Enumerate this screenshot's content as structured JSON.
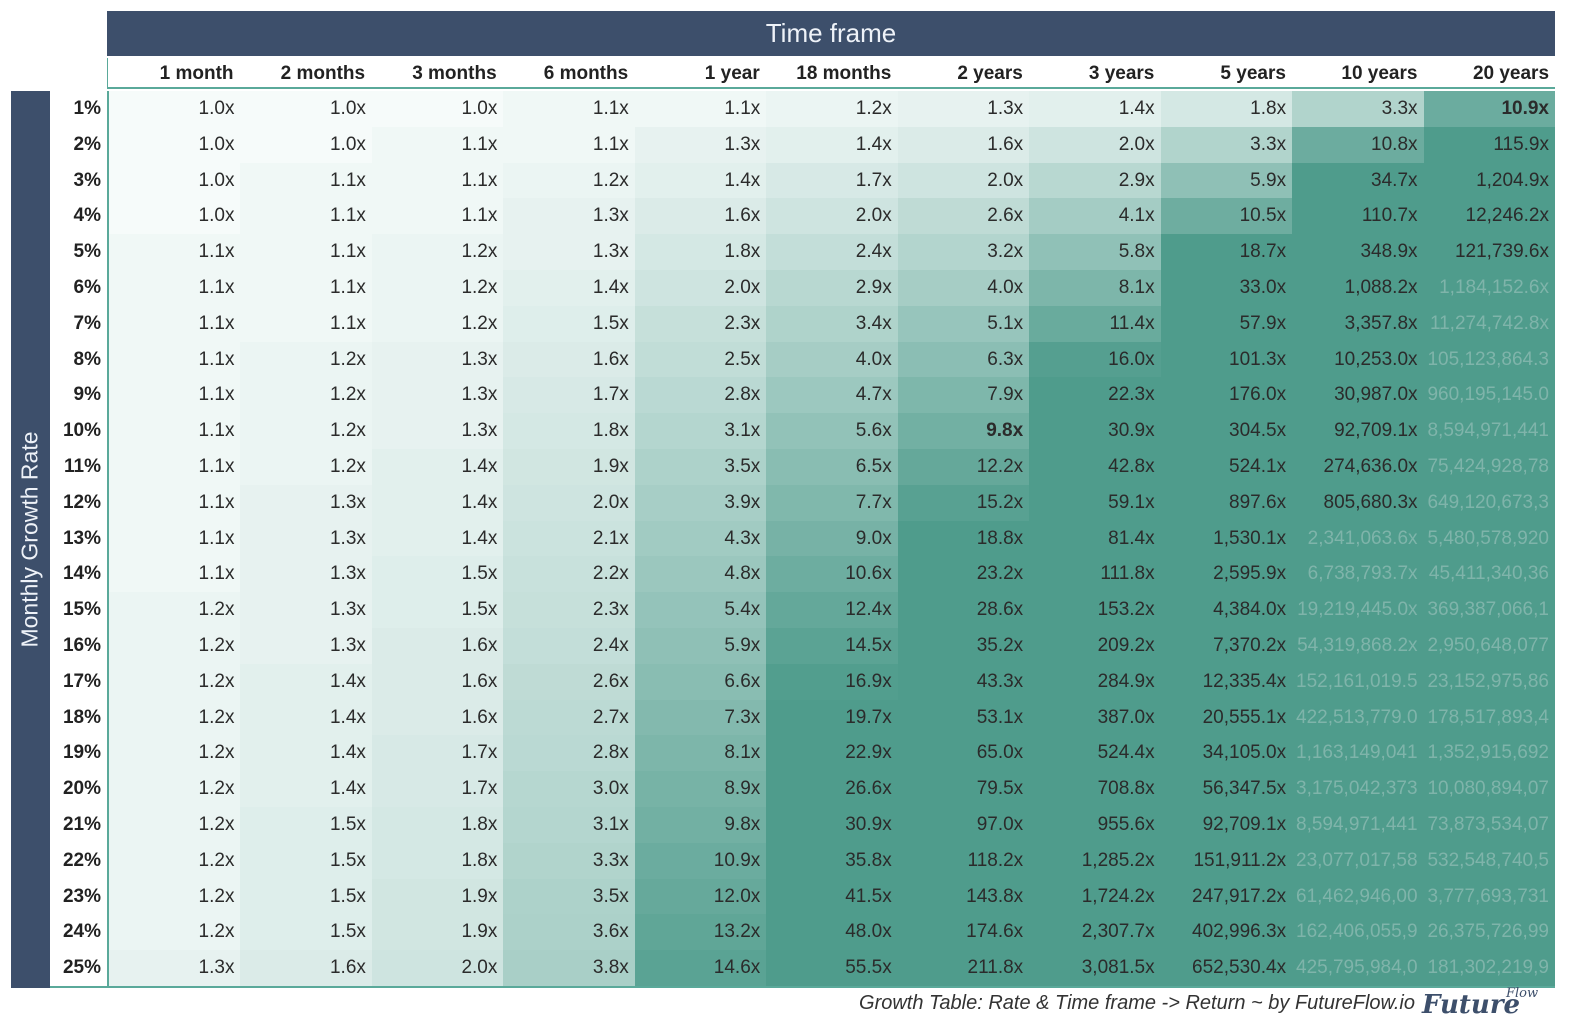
{
  "header": {
    "title": "Time frame"
  },
  "axis": {
    "row_label": "Monthly Growth Rate"
  },
  "columns": [
    "1 month",
    "2 months",
    "3 months",
    "6 months",
    "1 year",
    "18 months",
    "2 years",
    "3 years",
    "5 years",
    "10 years",
    "20 years"
  ],
  "rows": [
    {
      "rate": "1%",
      "values": [
        "1.0x",
        "1.0x",
        "1.0x",
        "1.1x",
        "1.1x",
        "1.2x",
        "1.3x",
        "1.4x",
        "1.8x",
        "3.3x",
        "10.9x"
      ]
    },
    {
      "rate": "2%",
      "values": [
        "1.0x",
        "1.0x",
        "1.1x",
        "1.1x",
        "1.3x",
        "1.4x",
        "1.6x",
        "2.0x",
        "3.3x",
        "10.8x",
        "115.9x"
      ]
    },
    {
      "rate": "3%",
      "values": [
        "1.0x",
        "1.1x",
        "1.1x",
        "1.2x",
        "1.4x",
        "1.7x",
        "2.0x",
        "2.9x",
        "5.9x",
        "34.7x",
        "1,204.9x"
      ]
    },
    {
      "rate": "4%",
      "values": [
        "1.0x",
        "1.1x",
        "1.1x",
        "1.3x",
        "1.6x",
        "2.0x",
        "2.6x",
        "4.1x",
        "10.5x",
        "110.7x",
        "12,246.2x"
      ]
    },
    {
      "rate": "5%",
      "values": [
        "1.1x",
        "1.1x",
        "1.2x",
        "1.3x",
        "1.8x",
        "2.4x",
        "3.2x",
        "5.8x",
        "18.7x",
        "348.9x",
        "121,739.6x"
      ]
    },
    {
      "rate": "6%",
      "values": [
        "1.1x",
        "1.1x",
        "1.2x",
        "1.4x",
        "2.0x",
        "2.9x",
        "4.0x",
        "8.1x",
        "33.0x",
        "1,088.2x",
        "1,184,152.6x"
      ]
    },
    {
      "rate": "7%",
      "values": [
        "1.1x",
        "1.1x",
        "1.2x",
        "1.5x",
        "2.3x",
        "3.4x",
        "5.1x",
        "11.4x",
        "57.9x",
        "3,357.8x",
        "11,274,742.8x"
      ]
    },
    {
      "rate": "8%",
      "values": [
        "1.1x",
        "1.2x",
        "1.3x",
        "1.6x",
        "2.5x",
        "4.0x",
        "6.3x",
        "16.0x",
        "101.3x",
        "10,253.0x",
        "105,123,864.3"
      ]
    },
    {
      "rate": "9%",
      "values": [
        "1.1x",
        "1.2x",
        "1.3x",
        "1.7x",
        "2.8x",
        "4.7x",
        "7.9x",
        "22.3x",
        "176.0x",
        "30,987.0x",
        "960,195,145.0"
      ]
    },
    {
      "rate": "10%",
      "values": [
        "1.1x",
        "1.2x",
        "1.3x",
        "1.8x",
        "3.1x",
        "5.6x",
        "9.8x",
        "30.9x",
        "304.5x",
        "92,709.1x",
        "8,594,971,441"
      ]
    },
    {
      "rate": "11%",
      "values": [
        "1.1x",
        "1.2x",
        "1.4x",
        "1.9x",
        "3.5x",
        "6.5x",
        "12.2x",
        "42.8x",
        "524.1x",
        "274,636.0x",
        "75,424,928,78"
      ]
    },
    {
      "rate": "12%",
      "values": [
        "1.1x",
        "1.3x",
        "1.4x",
        "2.0x",
        "3.9x",
        "7.7x",
        "15.2x",
        "59.1x",
        "897.6x",
        "805,680.3x",
        "649,120,673,3"
      ]
    },
    {
      "rate": "13%",
      "values": [
        "1.1x",
        "1.3x",
        "1.4x",
        "2.1x",
        "4.3x",
        "9.0x",
        "18.8x",
        "81.4x",
        "1,530.1x",
        "2,341,063.6x",
        "5,480,578,920"
      ]
    },
    {
      "rate": "14%",
      "values": [
        "1.1x",
        "1.3x",
        "1.5x",
        "2.2x",
        "4.8x",
        "10.6x",
        "23.2x",
        "111.8x",
        "2,595.9x",
        "6,738,793.7x",
        "45,411,340,36"
      ]
    },
    {
      "rate": "15%",
      "values": [
        "1.2x",
        "1.3x",
        "1.5x",
        "2.3x",
        "5.4x",
        "12.4x",
        "28.6x",
        "153.2x",
        "4,384.0x",
        "19,219,445.0x",
        "369,387,066,1"
      ]
    },
    {
      "rate": "16%",
      "values": [
        "1.2x",
        "1.3x",
        "1.6x",
        "2.4x",
        "5.9x",
        "14.5x",
        "35.2x",
        "209.2x",
        "7,370.2x",
        "54,319,868.2x",
        "2,950,648,077"
      ]
    },
    {
      "rate": "17%",
      "values": [
        "1.2x",
        "1.4x",
        "1.6x",
        "2.6x",
        "6.6x",
        "16.9x",
        "43.3x",
        "284.9x",
        "12,335.4x",
        "152,161,019.5",
        "23,152,975,86"
      ]
    },
    {
      "rate": "18%",
      "values": [
        "1.2x",
        "1.4x",
        "1.6x",
        "2.7x",
        "7.3x",
        "19.7x",
        "53.1x",
        "387.0x",
        "20,555.1x",
        "422,513,779.0",
        "178,517,893,4"
      ]
    },
    {
      "rate": "19%",
      "values": [
        "1.2x",
        "1.4x",
        "1.7x",
        "2.8x",
        "8.1x",
        "22.9x",
        "65.0x",
        "524.4x",
        "34,105.0x",
        "1,163,149,041",
        "1,352,915,692"
      ]
    },
    {
      "rate": "20%",
      "values": [
        "1.2x",
        "1.4x",
        "1.7x",
        "3.0x",
        "8.9x",
        "26.6x",
        "79.5x",
        "708.8x",
        "56,347.5x",
        "3,175,042,373",
        "10,080,894,07"
      ]
    },
    {
      "rate": "21%",
      "values": [
        "1.2x",
        "1.5x",
        "1.8x",
        "3.1x",
        "9.8x",
        "30.9x",
        "97.0x",
        "955.6x",
        "92,709.1x",
        "8,594,971,441",
        "73,873,534,07"
      ]
    },
    {
      "rate": "22%",
      "values": [
        "1.2x",
        "1.5x",
        "1.8x",
        "3.3x",
        "10.9x",
        "35.8x",
        "118.2x",
        "1,285.2x",
        "151,911.2x",
        "23,077,017,58",
        "532,548,740,5"
      ]
    },
    {
      "rate": "23%",
      "values": [
        "1.2x",
        "1.5x",
        "1.9x",
        "3.5x",
        "12.0x",
        "41.5x",
        "143.8x",
        "1,724.2x",
        "247,917.2x",
        "61,462,946,00",
        "3,777,693,731"
      ]
    },
    {
      "rate": "24%",
      "values": [
        "1.2x",
        "1.5x",
        "1.9x",
        "3.6x",
        "13.2x",
        "48.0x",
        "174.6x",
        "2,307.7x",
        "402,996.3x",
        "162,406,055,9",
        "26,375,726,99"
      ]
    },
    {
      "rate": "25%",
      "values": [
        "1.3x",
        "1.6x",
        "2.0x",
        "3.8x",
        "14.6x",
        "55.5x",
        "211.8x",
        "3,081.5x",
        "652,530.4x",
        "425,795,984,0",
        "181,302,219,9"
      ]
    }
  ],
  "highlights": [
    {
      "row": 0,
      "col": 10
    },
    {
      "row": 9,
      "col": 6
    }
  ],
  "footer": {
    "caption": "Growth Table: Rate & Time frame -> Return ~ by FutureFlow.io"
  },
  "logo": {
    "text": "Future",
    "superscript": "Flow"
  },
  "colors": {
    "header_bg": "#3d4f6b",
    "accent": "#5aa99a",
    "cell_light": "#f6fbfa",
    "cell_dark": "#4f9c8c",
    "faded_text": "#7fb4aa"
  }
}
